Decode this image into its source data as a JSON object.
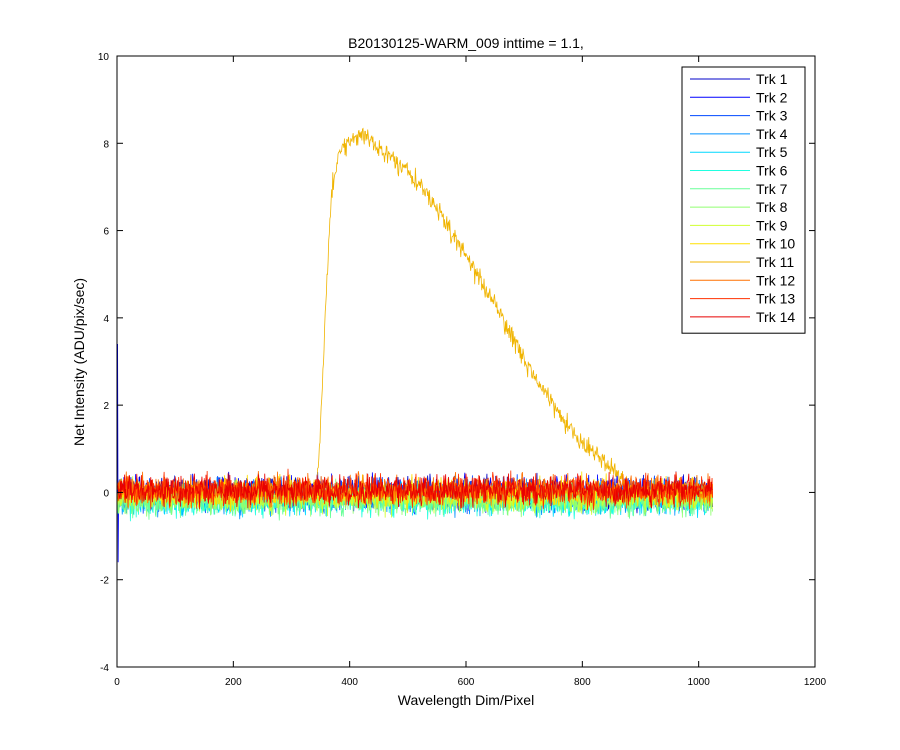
{
  "chart_data": {
    "type": "line",
    "title": "B20130125-WARM_009 inttime = 1.1,",
    "xlabel": "Wavelength Dim/Pixel",
    "ylabel": "Net Intensity (ADU/pix/sec)",
    "xlim": [
      0,
      1200
    ],
    "ylim": [
      -4,
      10
    ],
    "xticks": [
      0,
      200,
      400,
      600,
      800,
      1000,
      1200
    ],
    "yticks": [
      -4,
      -2,
      0,
      2,
      4,
      6,
      8,
      10
    ],
    "grid": false,
    "legend_position": "top-right",
    "x_range": [
      1,
      1024
    ],
    "series": [
      {
        "name": "Trk 1",
        "color": "#0000c8",
        "noise": 0.55,
        "baseline": 0.0
      },
      {
        "name": "Trk 2",
        "color": "#0000ff",
        "noise": 0.55,
        "baseline": 0.0
      },
      {
        "name": "Trk 3",
        "color": "#0048ff",
        "noise": 0.55,
        "baseline": -0.05
      },
      {
        "name": "Trk 4",
        "color": "#0090ff",
        "noise": 0.55,
        "baseline": -0.1
      },
      {
        "name": "Trk 5",
        "color": "#00d8ff",
        "noise": 0.5,
        "baseline": -0.15
      },
      {
        "name": "Trk 6",
        "color": "#20ffe0",
        "noise": 0.5,
        "baseline": -0.2
      },
      {
        "name": "Trk 7",
        "color": "#68ff98",
        "noise": 0.5,
        "baseline": -0.2
      },
      {
        "name": "Trk 8",
        "color": "#90ff70",
        "noise": 0.5,
        "baseline": -0.15
      },
      {
        "name": "Trk 9",
        "color": "#d0ff30",
        "noise": 0.5,
        "baseline": -0.1
      },
      {
        "name": "Trk 10",
        "color": "#ffe000",
        "noise": 0.5,
        "baseline": 0.0
      },
      {
        "name": "Trk 11",
        "color": "#f0b400",
        "noise": 0.35,
        "baseline": 0.05,
        "profile": [
          [
            1,
            0.05
          ],
          [
            343,
            0.05
          ],
          [
            350,
            1.5
          ],
          [
            358,
            4.0
          ],
          [
            368,
            6.8
          ],
          [
            380,
            7.8
          ],
          [
            400,
            8.1
          ],
          [
            420,
            8.2
          ],
          [
            450,
            7.9
          ],
          [
            500,
            7.4
          ],
          [
            550,
            6.5
          ],
          [
            600,
            5.4
          ],
          [
            650,
            4.3
          ],
          [
            700,
            3.0
          ],
          [
            750,
            2.0
          ],
          [
            800,
            1.1
          ],
          [
            840,
            0.7
          ],
          [
            870,
            0.3
          ],
          [
            880,
            0.05
          ],
          [
            1024,
            0.05
          ]
        ]
      },
      {
        "name": "Trk 12",
        "color": "#ff7000",
        "noise": 0.5,
        "baseline": 0.05
      },
      {
        "name": "Trk 13",
        "color": "#ff3000",
        "noise": 0.5,
        "baseline": 0.05
      },
      {
        "name": "Trk 14",
        "color": "#e80000",
        "noise": 0.5,
        "baseline": 0.05
      }
    ]
  }
}
